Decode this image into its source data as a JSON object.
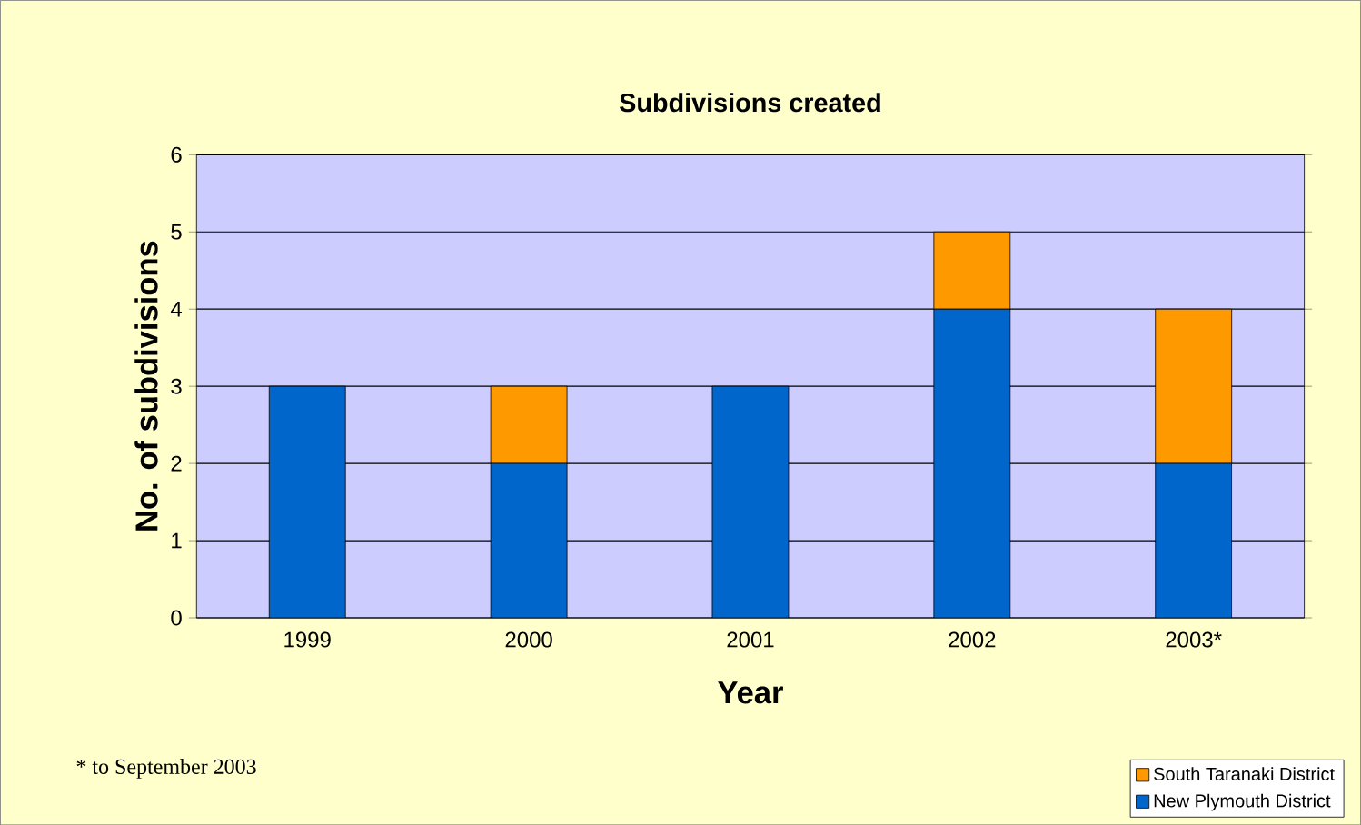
{
  "chart_data": {
    "type": "bar",
    "title": "Subdivisions created",
    "xlabel": "Year",
    "ylabel": "No. of subdivisions",
    "categories": [
      "1999",
      "2000",
      "2001",
      "2002",
      "2003*"
    ],
    "series": [
      {
        "name": "New Plymouth District",
        "color": "#0066cc",
        "values": [
          3,
          2,
          3,
          4,
          2
        ]
      },
      {
        "name": "South Taranaki District",
        "color": "#ff9900",
        "values": [
          0,
          1,
          0,
          1,
          2
        ]
      }
    ],
    "stacked": true,
    "ylim": [
      0,
      6
    ],
    "yticks": [
      0,
      1,
      2,
      3,
      4,
      5,
      6
    ],
    "grid": "y",
    "legend": "bottom right",
    "annotations": [
      "* to September 2003"
    ]
  }
}
